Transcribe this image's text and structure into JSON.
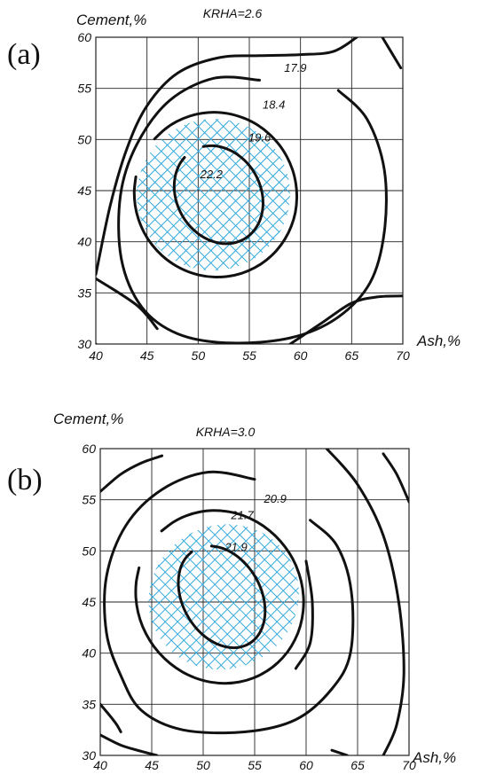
{
  "chart_data": [
    {
      "type": "contour",
      "panel_label": "(a)",
      "title": "KRHA=2.6",
      "xlabel": "Ash,%",
      "ylabel": "Cement,%",
      "xlim": [
        40,
        70
      ],
      "ylim": [
        30,
        60
      ],
      "xticks": [
        40,
        45,
        50,
        55,
        60,
        65,
        70
      ],
      "yticks": [
        30,
        35,
        40,
        45,
        50,
        55,
        60
      ],
      "grid": true,
      "contours": [
        {
          "level": "17.9",
          "label_at": [
            59.5,
            56.6
          ]
        },
        {
          "level": "18.4",
          "label_at": [
            57.4,
            53.0
          ]
        },
        {
          "level": "19.6",
          "label_at": [
            56.0,
            49.8
          ]
        },
        {
          "level": "22.2",
          "label_at": [
            51.3,
            46.2
          ]
        }
      ],
      "hatched_region": "optimum",
      "hatch_color": "#33aadd"
    },
    {
      "type": "contour",
      "panel_label": "(b)",
      "title": "KRHA=3.0",
      "xlabel": "Ash,%",
      "ylabel": "Cement,%",
      "xlim": [
        40,
        70
      ],
      "ylim": [
        30,
        60
      ],
      "xticks": [
        40,
        45,
        50,
        55,
        60,
        65,
        70
      ],
      "yticks": [
        30,
        35,
        40,
        45,
        50,
        55,
        60
      ],
      "grid": true,
      "contours": [
        {
          "level": "20.9",
          "label_at": [
            57.0,
            54.7
          ]
        },
        {
          "level": "21.7",
          "label_at": [
            53.8,
            53.1
          ]
        },
        {
          "level": "21.9",
          "label_at": [
            53.2,
            50.0
          ]
        }
      ],
      "hatched_region": "optimum",
      "hatch_color": "#33aadd"
    }
  ]
}
